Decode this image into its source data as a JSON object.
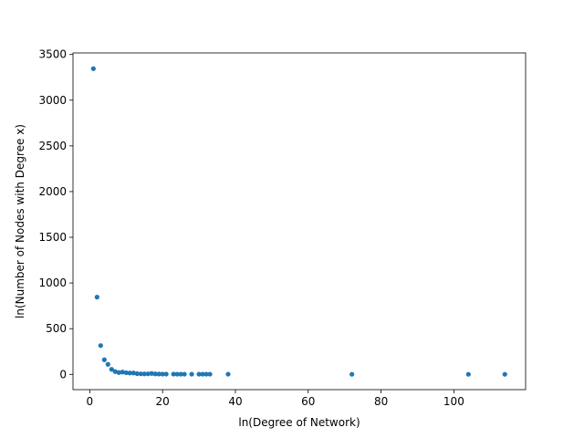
{
  "chart_data": {
    "type": "scatter",
    "title": "",
    "xlabel": "ln(Degree of Network)",
    "ylabel": "ln(Number of Nodes with Degree x)",
    "xlim": [
      -4.6,
      119.7
    ],
    "ylim": [
      -167,
      3517
    ],
    "xticks": [
      0,
      20,
      40,
      60,
      80,
      100
    ],
    "yticks": [
      0,
      500,
      1000,
      1500,
      2000,
      2500,
      3000,
      3500
    ],
    "grid": false,
    "legend": "none",
    "marker_color": "#1f77b4",
    "series": [
      {
        "x": [
          1,
          2,
          3,
          4,
          5,
          6,
          7,
          8,
          9,
          10,
          11,
          12,
          13,
          14,
          15,
          16,
          17,
          18,
          19,
          20,
          21,
          23,
          24,
          25,
          26,
          28,
          30,
          31,
          32,
          33,
          38,
          72,
          104,
          114
        ],
        "y": [
          3345,
          845,
          315,
          160,
          110,
          55,
          30,
          20,
          25,
          18,
          15,
          15,
          8,
          6,
          5,
          6,
          10,
          5,
          4,
          3,
          3,
          3,
          2,
          2,
          2,
          2,
          2,
          2,
          2,
          2,
          2,
          1,
          1,
          1
        ]
      }
    ]
  }
}
